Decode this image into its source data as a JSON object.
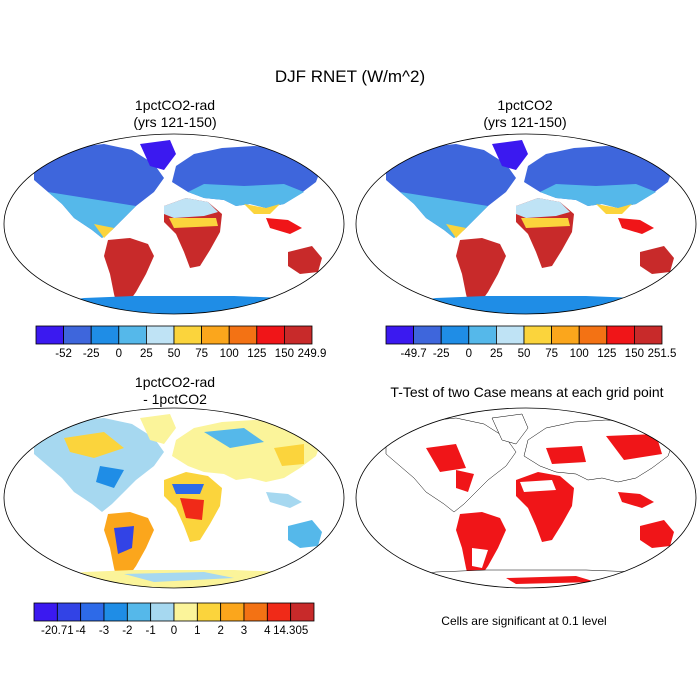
{
  "title": "DJF RNET (W/m^2)",
  "panels": [
    {
      "title": "1pctCO2-rad",
      "subtitle": "(yrs 121-150)"
    },
    {
      "title": "1pctCO2",
      "subtitle": "(yrs 121-150)"
    },
    {
      "title": "1pctCO2-rad",
      "subtitle": "- 1pctCO2"
    },
    {
      "title": "T-Test of two Case means at each grid point",
      "subtitle": ""
    }
  ],
  "colorbars": [
    {
      "labels": [
        "-52",
        "-25",
        "0",
        "25",
        "50",
        "75",
        "100",
        "125",
        "150",
        "249.9"
      ],
      "colors": [
        "#3b19f0",
        "#3e66dc",
        "#1f8de6",
        "#55b8ea",
        "#bfe3f5",
        "#fbd43c",
        "#fba61c",
        "#f37214",
        "#f01518",
        "#c82a2a"
      ]
    },
    {
      "labels": [
        "-49.7",
        "-25",
        "0",
        "25",
        "50",
        "75",
        "100",
        "125",
        "150",
        "251.5"
      ],
      "colors": [
        "#3b19f0",
        "#3e66dc",
        "#1f8de6",
        "#55b8ea",
        "#bfe3f5",
        "#fbd43c",
        "#fba61c",
        "#f37214",
        "#f01518",
        "#c82a2a"
      ]
    },
    {
      "labels": [
        "-20.71",
        "-4",
        "-3",
        "-2",
        "-1",
        "0",
        "1",
        "2",
        "3",
        "4",
        "14.305"
      ],
      "colors": [
        "#3b19f0",
        "#3243e6",
        "#2d6ae8",
        "#1f8de6",
        "#55b8ea",
        "#a6d8f0",
        "#fbf49a",
        "#fbd43c",
        "#fba61c",
        "#f37214",
        "#f02a18",
        "#c82a2a"
      ]
    }
  ],
  "significance_note": "Cells are significant at 0.1 level"
}
